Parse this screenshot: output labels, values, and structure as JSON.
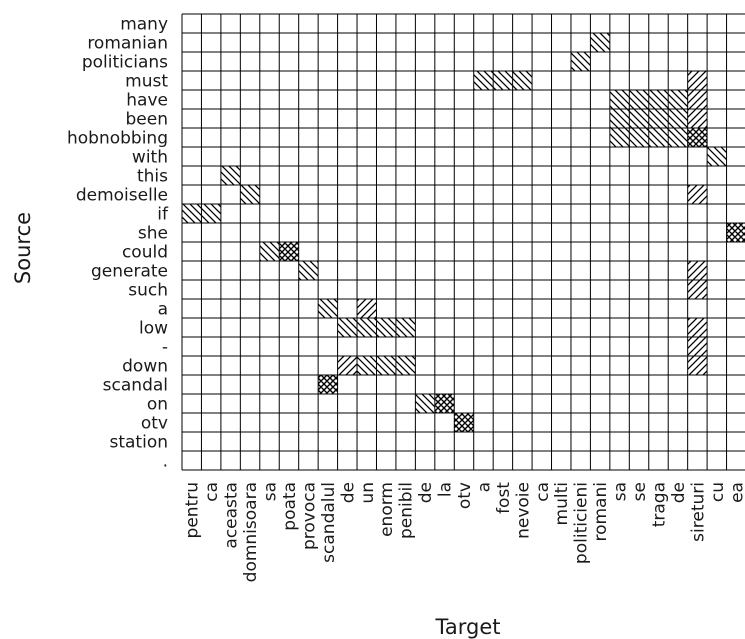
{
  "chart_data": {
    "type": "heatmap",
    "title": "",
    "xlabel": "Target",
    "ylabel": "Source",
    "grid": true,
    "x_categories": [
      "pentru",
      "ca",
      "aceasta",
      "domnisoara",
      "sa",
      "poata",
      "provoca",
      "scandalul",
      "de",
      "un",
      "enorm",
      "penibil",
      "de",
      "la",
      "otv",
      "a",
      "fost",
      "nevoie",
      "ca",
      "multi",
      "politicieni",
      "romani",
      "sa",
      "se",
      "traga",
      "de",
      "sireturi",
      "cu",
      "ea"
    ],
    "y_categories": [
      "many",
      "romanian",
      "politicians",
      "must",
      "have",
      "been",
      "hobnobbing",
      "with",
      "this",
      "demoiselle",
      "if",
      "she",
      "could",
      "generate",
      "such",
      "a",
      "low",
      "-",
      "down",
      "scandal",
      "on",
      "otv",
      "station",
      "."
    ],
    "value_levels": {
      "0": "empty",
      "1": "back-diagonal hatch",
      "2": "forward-diagonal hatch",
      "3": "cross hatch"
    },
    "cells": [
      {
        "source": "romanian",
        "target_index": 21,
        "value": 1
      },
      {
        "source": "politicians",
        "target_index": 20,
        "value": 1
      },
      {
        "source": "must",
        "target_index": 15,
        "value": 1
      },
      {
        "source": "must",
        "target_index": 16,
        "value": 1
      },
      {
        "source": "must",
        "target_index": 17,
        "value": 1
      },
      {
        "source": "must",
        "target_index": 26,
        "value": 2
      },
      {
        "source": "have",
        "target_index": 22,
        "value": 1
      },
      {
        "source": "have",
        "target_index": 23,
        "value": 1
      },
      {
        "source": "have",
        "target_index": 24,
        "value": 1
      },
      {
        "source": "have",
        "target_index": 25,
        "value": 1
      },
      {
        "source": "have",
        "target_index": 26,
        "value": 2
      },
      {
        "source": "been",
        "target_index": 22,
        "value": 1
      },
      {
        "source": "been",
        "target_index": 23,
        "value": 1
      },
      {
        "source": "been",
        "target_index": 24,
        "value": 1
      },
      {
        "source": "been",
        "target_index": 25,
        "value": 1
      },
      {
        "source": "been",
        "target_index": 26,
        "value": 2
      },
      {
        "source": "hobnobbing",
        "target_index": 22,
        "value": 1
      },
      {
        "source": "hobnobbing",
        "target_index": 23,
        "value": 1
      },
      {
        "source": "hobnobbing",
        "target_index": 24,
        "value": 1
      },
      {
        "source": "hobnobbing",
        "target_index": 25,
        "value": 1
      },
      {
        "source": "hobnobbing",
        "target_index": 26,
        "value": 3
      },
      {
        "source": "with",
        "target_index": 27,
        "value": 1
      },
      {
        "source": "this",
        "target_index": 2,
        "value": 1
      },
      {
        "source": "demoiselle",
        "target_index": 3,
        "value": 1
      },
      {
        "source": "demoiselle",
        "target_index": 26,
        "value": 2
      },
      {
        "source": "if",
        "target_index": 0,
        "value": 1
      },
      {
        "source": "if",
        "target_index": 1,
        "value": 1
      },
      {
        "source": "she",
        "target_index": 28,
        "value": 3
      },
      {
        "source": "could",
        "target_index": 4,
        "value": 1
      },
      {
        "source": "could",
        "target_index": 5,
        "value": 3
      },
      {
        "source": "generate",
        "target_index": 6,
        "value": 1
      },
      {
        "source": "generate",
        "target_index": 26,
        "value": 2
      },
      {
        "source": "such",
        "target_index": 26,
        "value": 2
      },
      {
        "source": "a",
        "target_index": 7,
        "value": 1
      },
      {
        "source": "a",
        "target_index": 9,
        "value": 2
      },
      {
        "source": "low",
        "target_index": 8,
        "value": 1
      },
      {
        "source": "low",
        "target_index": 9,
        "value": 1
      },
      {
        "source": "low",
        "target_index": 10,
        "value": 1
      },
      {
        "source": "low",
        "target_index": 11,
        "value": 1
      },
      {
        "source": "low",
        "target_index": 26,
        "value": 2
      },
      {
        "source": "-",
        "target_index": 26,
        "value": 2
      },
      {
        "source": "down",
        "target_index": 8,
        "value": 2
      },
      {
        "source": "down",
        "target_index": 9,
        "value": 1
      },
      {
        "source": "down",
        "target_index": 10,
        "value": 1
      },
      {
        "source": "down",
        "target_index": 11,
        "value": 1
      },
      {
        "source": "down",
        "target_index": 26,
        "value": 2
      },
      {
        "source": "scandal",
        "target_index": 7,
        "value": 3
      },
      {
        "source": "on",
        "target_index": 12,
        "value": 1
      },
      {
        "source": "on",
        "target_index": 13,
        "value": 3
      },
      {
        "source": "otv",
        "target_index": 14,
        "value": 3
      }
    ]
  }
}
